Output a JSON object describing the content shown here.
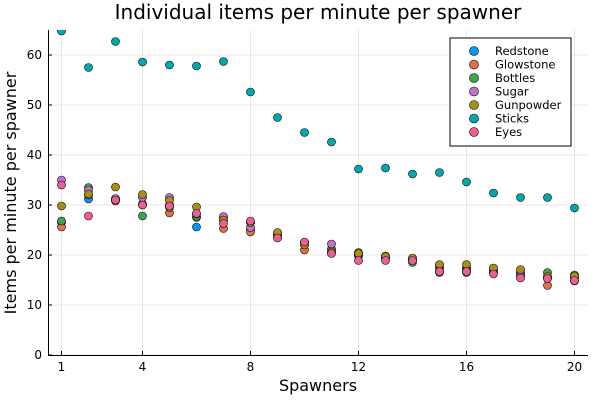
{
  "chart_data": {
    "type": "scatter",
    "title": "Individual items per minute per spawner",
    "xlabel": "Spawners",
    "ylabel": "Items per minute per spawner",
    "xlim": [
      0.5,
      20.5
    ],
    "ylim": [
      0,
      65
    ],
    "x_ticks": [
      1,
      4,
      8,
      12,
      16,
      20
    ],
    "y_ticks": [
      0,
      10,
      20,
      30,
      40,
      50,
      60
    ],
    "grid": true,
    "legend_position": "top-right",
    "x": [
      1,
      2,
      3,
      4,
      5,
      6,
      7,
      8,
      9,
      10,
      11,
      12,
      13,
      14,
      15,
      16,
      17,
      18,
      19,
      20
    ],
    "series": [
      {
        "name": "Redstone",
        "color": "#009AFA",
        "values": [
          26.5,
          31.2,
          31.0,
          30.2,
          30.0,
          25.6,
          27.0,
          25.0,
          24.2,
          22.0,
          21.0,
          20.0,
          19.5,
          19.0,
          16.5,
          16.5,
          16.5,
          16.0,
          15.5,
          15.5
        ]
      },
      {
        "name": "Glowstone",
        "color": "#E36F47",
        "values": [
          25.6,
          32.0,
          30.8,
          30.0,
          28.4,
          27.5,
          25.3,
          24.6,
          23.5,
          21.0,
          20.5,
          19.8,
          19.3,
          19.0,
          17.5,
          17.3,
          17.0,
          16.3,
          13.9,
          15.3
        ]
      },
      {
        "name": "Bottles",
        "color": "#3EA44E",
        "values": [
          26.8,
          33.5,
          31.0,
          27.8,
          29.5,
          27.7,
          27.5,
          26.5,
          24.0,
          22.5,
          21.2,
          20.5,
          19.8,
          18.5,
          17.8,
          17.3,
          17.0,
          16.5,
          16.5,
          16.0
        ]
      },
      {
        "name": "Sugar",
        "color": "#C271D2",
        "values": [
          35.0,
          33.0,
          31.3,
          31.5,
          31.5,
          28.2,
          27.7,
          25.5,
          24.0,
          22.5,
          22.2,
          20.0,
          19.5,
          19.0,
          16.9,
          16.9,
          16.6,
          15.8,
          15.3,
          14.8
        ]
      },
      {
        "name": "Gunpowder",
        "color": "#AC8D18",
        "values": [
          29.8,
          32.2,
          33.6,
          32.1,
          30.9,
          29.6,
          27.0,
          26.5,
          24.5,
          22.0,
          20.6,
          20.3,
          19.7,
          19.4,
          18.1,
          18.1,
          17.4,
          17.1,
          15.7,
          15.8
        ]
      },
      {
        "name": "Sticks",
        "color": "#00A9AD",
        "values": [
          64.8,
          57.5,
          62.7,
          58.6,
          58.0,
          57.8,
          58.7,
          52.6,
          47.5,
          44.5,
          42.6,
          37.2,
          37.4,
          36.2,
          36.5,
          34.6,
          32.4,
          31.5,
          31.5,
          29.4
        ]
      },
      {
        "name": "Eyes",
        "color": "#ED5E93",
        "values": [
          34.0,
          27.8,
          31.0,
          30.0,
          29.8,
          28.3,
          26.3,
          26.8,
          23.4,
          22.6,
          20.3,
          18.9,
          18.9,
          18.9,
          16.7,
          16.7,
          16.2,
          15.4,
          15.3,
          14.9
        ]
      }
    ]
  }
}
